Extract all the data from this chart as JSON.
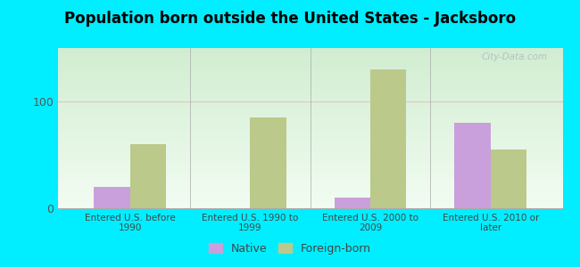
{
  "title": "Population born outside the United States - Jacksboro",
  "categories": [
    "Entered U.S. before\n1990",
    "Entered U.S. 1990 to\n1999",
    "Entered U.S. 2000 to\n2009",
    "Entered U.S. 2010 or\nlater"
  ],
  "native_values": [
    20,
    0,
    10,
    80
  ],
  "foreign_values": [
    60,
    85,
    130,
    55
  ],
  "native_color": "#c9a0dc",
  "foreign_color": "#bbc98a",
  "background_outer": "#00eeff",
  "ylim_max": 150,
  "yticks": [
    0,
    100
  ],
  "bar_width": 0.3,
  "title_fontsize": 12,
  "watermark_text": "City-Data.com",
  "legend_native": "Native",
  "legend_foreign": "Foreign-born",
  "tick_fontsize": 7.5,
  "ytick_fontsize": 9
}
